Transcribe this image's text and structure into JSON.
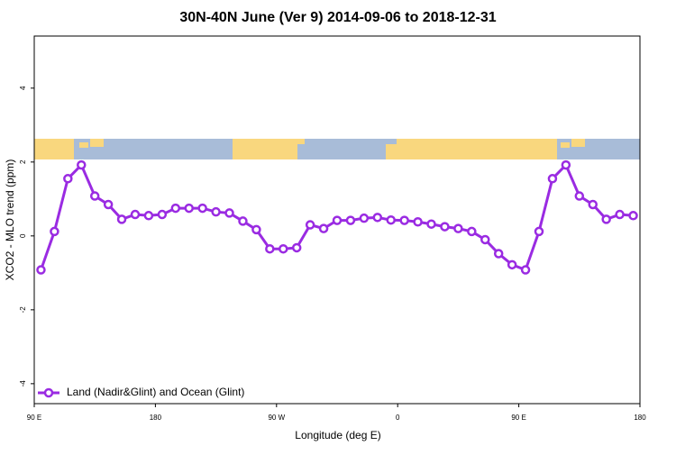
{
  "chart_data": {
    "type": "line",
    "title": "30N-40N June (Ver 9)   2014-09-06 to 2018-12-31",
    "xlabel": "Longitude (deg E)",
    "ylabel": "XCO2 - MLO trend (ppm)",
    "x": [
      95,
      105,
      115,
      125,
      135,
      145,
      155,
      165,
      175,
      185,
      195,
      205,
      215,
      225,
      235,
      245,
      255,
      265,
      275,
      285,
      295,
      305,
      315,
      325,
      335,
      345,
      355,
      365,
      375,
      385,
      395,
      405,
      415,
      425,
      435,
      445,
      455,
      465,
      475,
      485,
      495,
      505,
      515,
      525,
      535
    ],
    "series": [
      {
        "name": "Land (Nadir&Glint) and Ocean (Glint)",
        "color": "#9a2be2",
        "values": [
          -0.92,
          0.12,
          1.55,
          1.92,
          1.08,
          0.85,
          0.45,
          0.58,
          0.55,
          0.58,
          0.75,
          0.75,
          0.75,
          0.65,
          0.62,
          0.4,
          0.17,
          -0.35,
          -0.35,
          -0.32,
          0.3,
          0.2,
          0.42,
          0.42,
          0.48,
          0.5,
          0.43,
          0.42,
          0.38,
          0.32,
          0.25,
          0.2,
          0.12,
          -0.1,
          -0.48,
          -0.78,
          -0.92,
          0.12,
          1.55,
          1.92,
          1.08,
          0.85,
          0.45,
          0.58,
          0.55
        ]
      }
    ],
    "xlim": [
      90,
      540
    ],
    "xticks": [
      {
        "value": 90,
        "label": "90 E"
      },
      {
        "value": 180,
        "label": "180"
      },
      {
        "value": 270,
        "label": "90 W"
      },
      {
        "value": 360,
        "label": "0"
      },
      {
        "value": 450,
        "label": "90 E"
      },
      {
        "value": 540,
        "label": "180"
      }
    ],
    "ylim": [
      -4.54,
      5.41
    ],
    "yticks": [
      -4,
      -2,
      0,
      2,
      4
    ],
    "legend": "bottom-left"
  }
}
